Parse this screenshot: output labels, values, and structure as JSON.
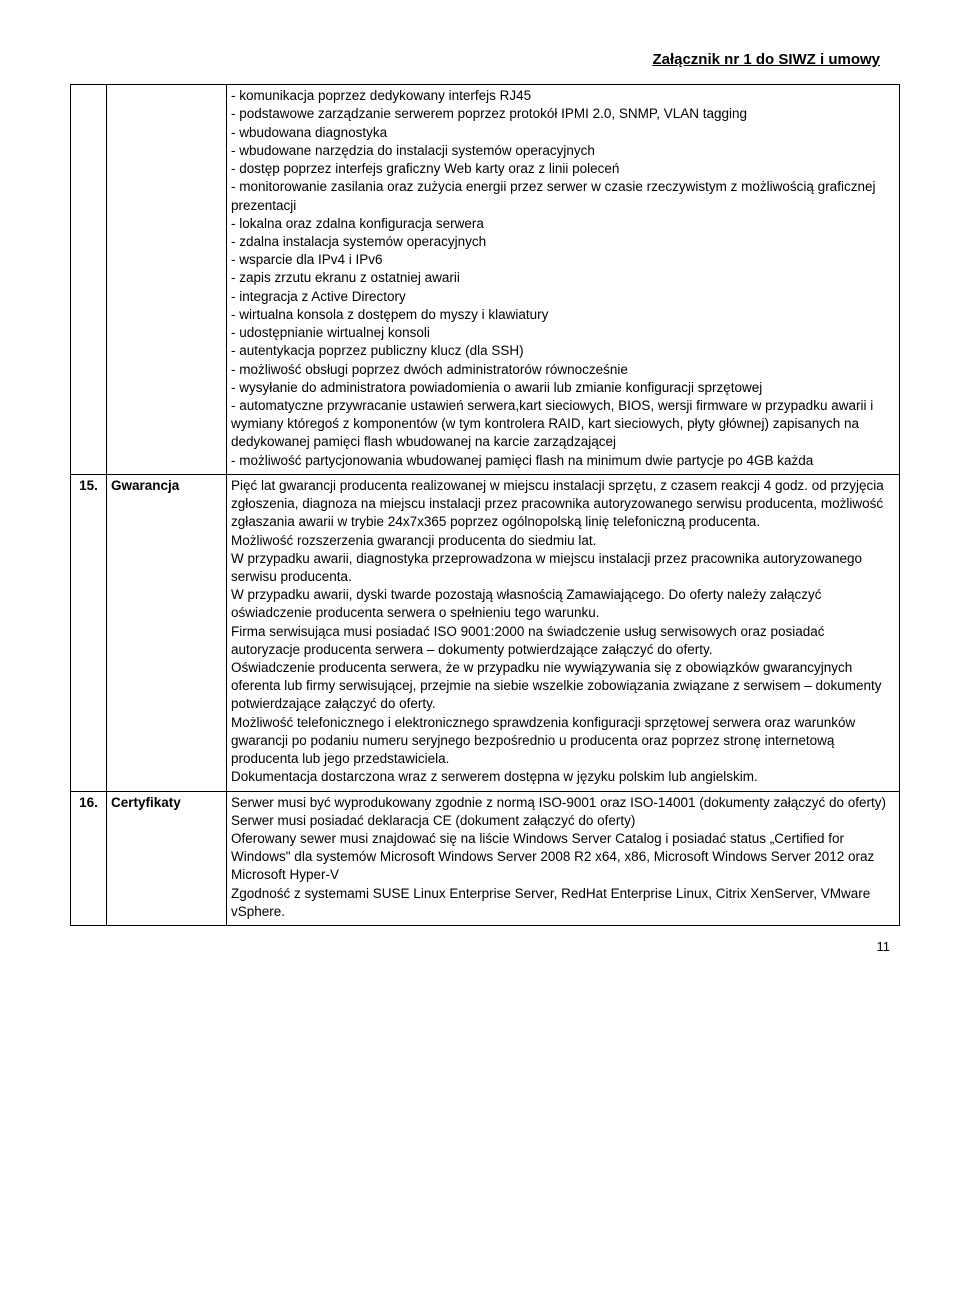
{
  "header": "Załącznik nr 1 do SIWZ i umowy",
  "rows": [
    {
      "num": "",
      "label": "",
      "content": "- komunikacja poprzez dedykowany interfejs RJ45\n- podstawowe zarządzanie serwerem poprzez protokół IPMI 2.0, SNMP, VLAN tagging\n- wbudowana diagnostyka\n- wbudowane narzędzia do instalacji systemów operacyjnych\n- dostęp poprzez interfejs graficzny Web karty oraz z linii poleceń\n- monitorowanie zasilania oraz zużycia energii przez serwer w czasie rzeczywistym z możliwością graficznej prezentacji\n- lokalna oraz zdalna konfiguracja serwera\n- zdalna instalacja systemów operacyjnych\n- wsparcie dla IPv4 i IPv6\n- zapis zrzutu ekranu z ostatniej awarii\n- integracja z Active Directory\n- wirtualna konsola z dostępem do myszy i klawiatury\n- udostępnianie wirtualnej konsoli\n- autentykacja poprzez publiczny klucz (dla SSH)\n- możliwość obsługi poprzez dwóch administratorów równocześnie\n- wysyłanie do administratora powiadomienia o awarii lub zmianie konfiguracji sprzętowej\n- automatyczne przywracanie ustawień serwera,kart sieciowych, BIOS, wersji firmware w przypadku awarii i wymiany któregoś z komponentów (w tym kontrolera RAID, kart sieciowych, płyty głównej) zapisanych na dedykowanej pamięci flash wbudowanej na karcie zarządzającej\n- możliwość partycjonowania wbudowanej pamięci flash na minimum dwie partycje po 4GB każda"
    },
    {
      "num": "15.",
      "label": "Gwarancja",
      "content": "Pięć lat gwarancji producenta realizowanej w miejscu instalacji sprzętu, z czasem reakcji 4 godz. od przyjęcia zgłoszenia, diagnoza na miejscu instalacji przez pracownika autoryzowanego serwisu producenta, możliwość zgłaszania awarii w trybie 24x7x365 poprzez ogólnopolską linię telefoniczną producenta.\nMożliwość rozszerzenia gwarancji producenta do siedmiu lat.\nW przypadku awarii, diagnostyka przeprowadzona w miejscu instalacji przez pracownika autoryzowanego serwisu producenta.\nW przypadku awarii, dyski twarde pozostają własnością Zamawiającego. Do oferty należy załączyć oświadczenie  producenta serwera o spełnieniu tego warunku.\nFirma serwisująca musi posiadać ISO 9001:2000 na świadczenie usług serwisowych oraz posiadać autoryzacje producenta serwera – dokumenty potwierdzające załączyć do oferty.\nOświadczenie producenta serwera, że w przypadku nie wywiązywania się z obowiązków gwarancyjnych oferenta lub firmy serwisującej, przejmie na siebie wszelkie zobowiązania związane z serwisem – dokumenty potwierdzające załączyć do oferty.\nMożliwość telefonicznego i elektronicznego sprawdzenia konfiguracji sprzętowej serwera oraz warunków gwarancji po podaniu numeru seryjnego bezpośrednio u producenta oraz poprzez stronę internetową producenta lub jego przedstawiciela.\nDokumentacja dostarczona wraz z serwerem dostępna w języku polskim lub angielskim."
    },
    {
      "num": "16.",
      "label": "Certyfikaty",
      "content": "Serwer musi być wyprodukowany zgodnie z normą  ISO-9001 oraz ISO-14001 (dokumenty załączyć do oferty)\nSerwer musi posiadać deklaracja CE (dokument załączyć do oferty)\nOferowany sewer musi znajdować się na liście Windows Server Catalog i posiadać status „Certified for Windows\" dla systemów Microsoft Windows Server 2008 R2 x64, x86, Microsoft Windows Server 2012 oraz Microsoft Hyper-V\nZgodność z systemami SUSE Linux Enterprise Server, RedHat Enterprise Linux, Citrix XenServer, VMware vSphere."
    }
  ],
  "pageNumber": "11"
}
